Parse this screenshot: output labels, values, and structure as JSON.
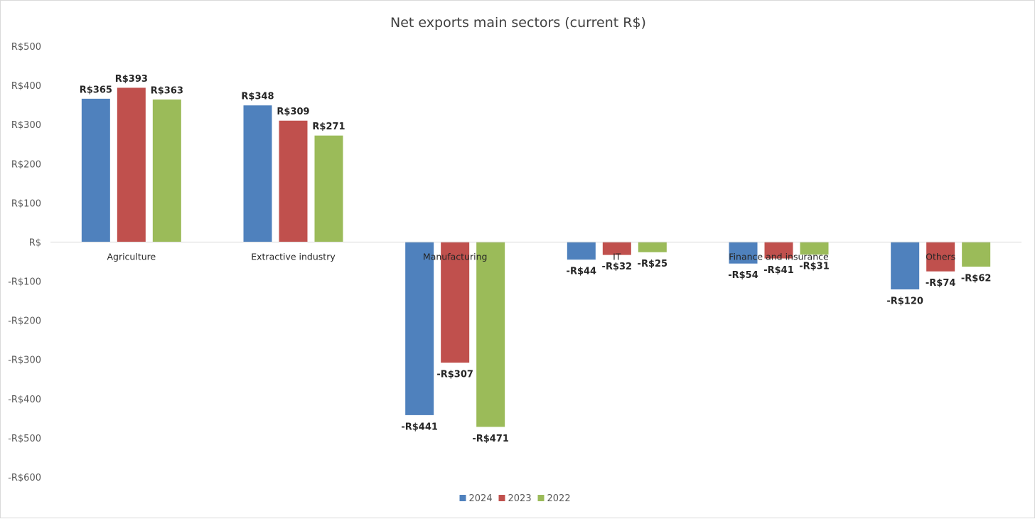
{
  "chart_data": {
    "type": "bar",
    "title": "Net exports main sectors (current R$)",
    "categories": [
      "Agriculture",
      "Extractive industry",
      "Manufacturing",
      "IT",
      "Finance and insurance",
      "Others"
    ],
    "series": [
      {
        "name": "2024",
        "color": "#4f81bd",
        "values": [
          365,
          348,
          -441,
          -44,
          -54,
          -120
        ],
        "labels": [
          "R$365",
          "R$348",
          "-R$441",
          "-R$44",
          "-R$54",
          "-R$120"
        ]
      },
      {
        "name": "2023",
        "color": "#c0504d",
        "values": [
          393,
          309,
          -307,
          -32,
          -41,
          -74
        ],
        "labels": [
          "R$393",
          "R$309",
          "-R$307",
          "-R$32",
          "-R$41",
          "-R$74"
        ]
      },
      {
        "name": "2022",
        "color": "#9bbb59",
        "values": [
          363,
          271,
          -471,
          -25,
          -31,
          -62
        ],
        "labels": [
          "R$363",
          "R$271",
          "-R$471",
          "-R$25",
          "-R$31",
          "-R$62"
        ]
      }
    ],
    "ylim": [
      -600,
      500
    ],
    "yticks": [
      500,
      400,
      300,
      200,
      100,
      0,
      -100,
      -200,
      -300,
      -400,
      -500,
      -600
    ],
    "ytick_labels": [
      "R$500",
      "R$400",
      "R$300",
      "R$200",
      "R$100",
      "R$",
      "-R$100",
      "-R$200",
      "-R$300",
      "-R$400",
      "-R$500",
      "-R$600"
    ],
    "grid": false,
    "legend": "bottom"
  }
}
